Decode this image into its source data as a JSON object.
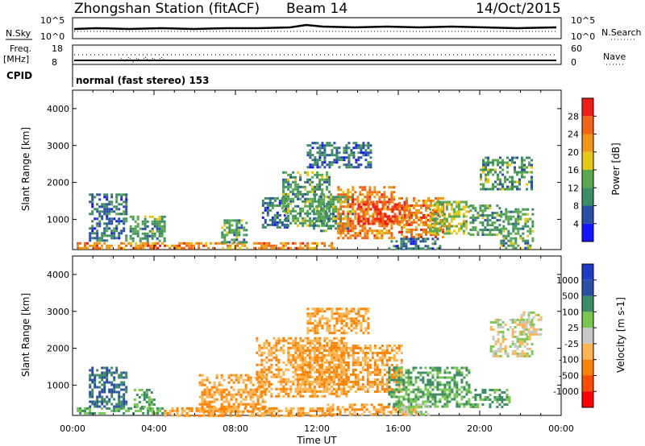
{
  "header": {
    "station": "Zhongshan Station (fitACF)",
    "beam": "Beam 14",
    "date": "14/Oct/2015"
  },
  "status_panels": {
    "nsky_label": "N.Sky",
    "nsearch_label": "N.Search",
    "nsky_ticks": [
      "10^5",
      "10^0"
    ],
    "nsearch_ticks": [
      "10^5",
      "10^0"
    ],
    "freq_label_1": "Freq.",
    "freq_label_2": "[MHz]",
    "freq_ticks": [
      "18",
      "8"
    ],
    "nave_label": "Nave",
    "nave_ticks": [
      "60",
      "0"
    ],
    "cpid_label": "CPID",
    "cpid_text": "normal (fast stereo) 153"
  },
  "colors": {
    "power_scale": [
      "#1414ff",
      "#2a4fa6",
      "#3c8c64",
      "#58a94c",
      "#e6c814",
      "#f09614",
      "#f06414",
      "#f01e14"
    ],
    "velocity_scale": [
      "#ff0000",
      "#ff4b00",
      "#ff8200",
      "#ffb450",
      "#c8c8c8",
      "#78c850",
      "#3c8c64",
      "#2a4fa6",
      "#1e3cc8"
    ]
  },
  "chart_data": [
    {
      "type": "heatmap",
      "name_panel": "power",
      "ylabel": "Slant Range [km]",
      "ylim": [
        180,
        4500
      ],
      "yticks": [
        "4000",
        "3000",
        "2000",
        "1000"
      ],
      "colorbar_label": "Power [dB]",
      "colorbar_ticks": [
        "28",
        "24",
        "20",
        "16",
        "12",
        "8",
        "4"
      ],
      "xlim": [
        0,
        24
      ],
      "regions": [
        {
          "t0": 0.2,
          "t1": 12.8,
          "r0": 200,
          "r1": 380,
          "v": 24
        },
        {
          "t0": 0.8,
          "t1": 2.6,
          "r0": 400,
          "r1": 1700,
          "v": 8
        },
        {
          "t0": 2.8,
          "t1": 4.5,
          "r0": 400,
          "r1": 1100,
          "v": 12
        },
        {
          "t0": 7.3,
          "t1": 8.6,
          "r0": 400,
          "r1": 1000,
          "v": 12
        },
        {
          "t0": 9.3,
          "t1": 10.5,
          "r0": 800,
          "r1": 1600,
          "v": 8
        },
        {
          "t0": 10.3,
          "t1": 12.6,
          "r0": 800,
          "r1": 2300,
          "v": 12
        },
        {
          "t0": 11.5,
          "t1": 14.6,
          "r0": 2400,
          "r1": 3100,
          "v": 8
        },
        {
          "t0": 11.8,
          "t1": 13.8,
          "r0": 700,
          "r1": 1700,
          "v": 12
        },
        {
          "t0": 13.0,
          "t1": 15.8,
          "r0": 500,
          "r1": 1900,
          "v": 24
        },
        {
          "t0": 14.0,
          "t1": 16.5,
          "r0": 900,
          "r1": 1500,
          "v": 28
        },
        {
          "t0": 16.0,
          "t1": 18.2,
          "r0": 500,
          "r1": 1600,
          "v": 24
        },
        {
          "t0": 17.5,
          "t1": 19.5,
          "r0": 600,
          "r1": 1500,
          "v": 16
        },
        {
          "t0": 19.5,
          "t1": 21.0,
          "r0": 600,
          "r1": 1400,
          "v": 12
        },
        {
          "t0": 15.5,
          "t1": 18.0,
          "r0": 200,
          "r1": 500,
          "v": 8
        },
        {
          "t0": 20.0,
          "t1": 22.6,
          "r0": 1800,
          "r1": 2700,
          "v": 12
        },
        {
          "t0": 21.0,
          "t1": 22.6,
          "r0": 200,
          "r1": 1300,
          "v": 12
        }
      ]
    },
    {
      "type": "heatmap",
      "name_panel": "velocity",
      "ylabel": "Slant Range [km]",
      "ylim": [
        180,
        4500
      ],
      "yticks": [
        "4000",
        "3000",
        "2000",
        "1000"
      ],
      "xlabel": "Time UT",
      "xticks": [
        "00:00",
        "04:00",
        "08:00",
        "12:00",
        "16:00",
        "20:00",
        "00:00"
      ],
      "colorbar_label": "Velocity [m s-1]",
      "colorbar_ticks": [
        "1000",
        "500",
        "100",
        "25",
        "-25",
        "-100",
        "-500",
        "-1000"
      ],
      "xlim": [
        0,
        24
      ],
      "regions": [
        {
          "t0": 0.2,
          "t1": 4.5,
          "r0": 220,
          "r1": 400,
          "v": 100
        },
        {
          "t0": 0.8,
          "t1": 2.6,
          "r0": 400,
          "r1": 1500,
          "v": 500
        },
        {
          "t0": 3.0,
          "t1": 4.0,
          "r0": 400,
          "r1": 900,
          "v": 100
        },
        {
          "t0": 4.5,
          "t1": 12.8,
          "r0": 200,
          "r1": 400,
          "v": -100
        },
        {
          "t0": 6.2,
          "t1": 9.5,
          "r0": 300,
          "r1": 1300,
          "v": -100
        },
        {
          "t0": 9.0,
          "t1": 13.5,
          "r0": 700,
          "r1": 2300,
          "v": -100
        },
        {
          "t0": 11.0,
          "t1": 16.2,
          "r0": 800,
          "r1": 2100,
          "v": -100
        },
        {
          "t0": 11.5,
          "t1": 14.5,
          "r0": 2400,
          "r1": 3100,
          "v": -100
        },
        {
          "t0": 12.5,
          "t1": 17.0,
          "r0": 200,
          "r1": 500,
          "v": -100
        },
        {
          "t0": 15.5,
          "t1": 19.5,
          "r0": 400,
          "r1": 1500,
          "v": 100
        },
        {
          "t0": 16.0,
          "t1": 17.5,
          "r0": 200,
          "r1": 500,
          "v": 25
        },
        {
          "t0": 19.5,
          "t1": 21.5,
          "r0": 400,
          "r1": 900,
          "v": 100
        },
        {
          "t0": 20.5,
          "t1": 22.6,
          "r0": 1800,
          "r1": 2800,
          "v": 0
        },
        {
          "t0": 22.0,
          "t1": 23.0,
          "r0": 2400,
          "r1": 3000,
          "v": 0
        }
      ]
    }
  ]
}
